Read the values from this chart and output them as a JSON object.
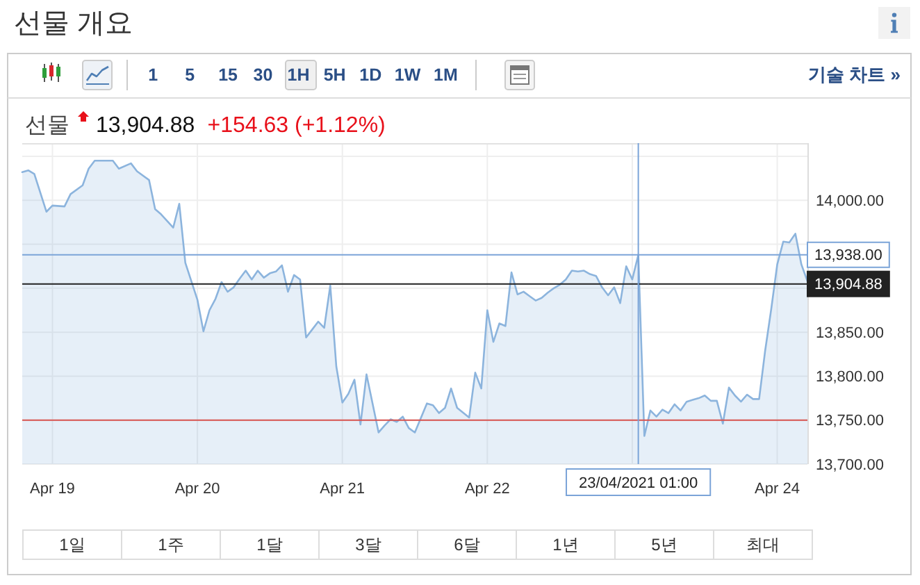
{
  "chart_data": {
    "type": "area",
    "title": "선물 개요",
    "subtitle": "선물",
    "annotations": [
      "13,904.88",
      "+154.63 (+1.12%)",
      "1 5 15 30 1H 5H 1D 1W 1M",
      "기술 차트 »",
      "1일",
      "1주",
      "1달",
      "3달",
      "6달",
      "1년",
      "5년",
      "최대"
    ],
    "color": "#8cb4dd",
    "x": [
      "2021-04-18T19:00",
      "2021-04-18T20:00",
      "2021-04-18T21:00",
      "2021-04-18T23:00",
      "2021-04-19T00:00",
      "2021-04-19T02:00",
      "2021-04-19T03:00",
      "2021-04-19T05:00",
      "2021-04-19T06:00",
      "2021-04-19T07:00",
      "2021-04-19T09:00",
      "2021-04-19T10:00",
      "2021-04-19T11:00",
      "2021-04-19T13:00",
      "2021-04-19T14:00",
      "2021-04-19T16:00",
      "2021-04-19T17:00",
      "2021-04-19T18:00",
      "2021-04-19T20:00",
      "2021-04-19T21:00",
      "2021-04-19T22:00",
      "2021-04-20T00:00",
      "2021-04-20T01:00",
      "2021-04-20T02:00",
      "2021-04-20T03:00",
      "2021-04-20T04:00",
      "2021-04-20T05:00",
      "2021-04-20T06:00",
      "2021-04-20T07:00",
      "2021-04-20T08:00",
      "2021-04-20T09:00",
      "2021-04-20T10:00",
      "2021-04-20T11:00",
      "2021-04-20T12:00",
      "2021-04-20T13:00",
      "2021-04-20T14:00",
      "2021-04-20T15:00",
      "2021-04-20T16:00",
      "2021-04-20T17:00",
      "2021-04-20T18:00",
      "2021-04-20T19:00",
      "2021-04-20T20:00",
      "2021-04-20T21:00",
      "2021-04-20T22:00",
      "2021-04-20T23:00",
      "2021-04-21T00:00",
      "2021-04-21T01:00",
      "2021-04-21T02:00",
      "2021-04-21T03:00",
      "2021-04-21T04:00",
      "2021-04-21T06:00",
      "2021-04-21T07:00",
      "2021-04-21T08:00",
      "2021-04-21T09:00",
      "2021-04-21T10:00",
      "2021-04-21T11:00",
      "2021-04-21T12:00",
      "2021-04-21T14:00",
      "2021-04-21T15:00",
      "2021-04-21T16:00",
      "2021-04-21T17:00",
      "2021-04-21T18:00",
      "2021-04-21T19:00",
      "2021-04-21T21:00",
      "2021-04-21T22:00",
      "2021-04-21T23:00",
      "2021-04-22T00:00",
      "2021-04-22T01:00",
      "2021-04-22T02:00",
      "2021-04-22T03:00",
      "2021-04-22T04:00",
      "2021-04-22T05:00",
      "2021-04-22T06:00",
      "2021-04-22T07:00",
      "2021-04-22T08:00",
      "2021-04-22T09:00",
      "2021-04-22T10:00",
      "2021-04-22T11:00",
      "2021-04-22T12:00",
      "2021-04-22T13:00",
      "2021-04-22T14:00",
      "2021-04-22T15:00",
      "2021-04-22T16:00",
      "2021-04-22T17:00",
      "2021-04-22T18:00",
      "2021-04-22T19:00",
      "2021-04-22T20:00",
      "2021-04-22T21:00",
      "2021-04-22T22:00",
      "2021-04-22T23:00",
      "2021-04-23T00:00",
      "2021-04-23T01:00",
      "2021-04-23T02:00",
      "2021-04-23T03:00",
      "2021-04-23T04:00",
      "2021-04-23T05:00",
      "2021-04-23T06:00",
      "2021-04-23T07:00",
      "2021-04-23T08:00",
      "2021-04-23T09:00",
      "2021-04-23T10:00",
      "2021-04-23T11:00",
      "2021-04-23T12:00",
      "2021-04-23T13:00",
      "2021-04-23T14:00",
      "2021-04-23T15:00",
      "2021-04-23T16:00",
      "2021-04-23T17:00",
      "2021-04-23T18:00",
      "2021-04-23T19:00",
      "2021-04-23T20:00",
      "2021-04-23T21:00",
      "2021-04-23T22:00",
      "2021-04-23T23:00",
      "2021-04-24T00:00",
      "2021-04-24T01:00",
      "2021-04-24T02:00",
      "2021-04-24T03:00",
      "2021-04-24T04:00",
      "2021-04-24T05:00"
    ],
    "values": [
      14032,
      14034,
      14030,
      13987,
      13994,
      13993,
      14007,
      14017,
      14036,
      14045,
      14045,
      14045,
      14036,
      14042,
      14033,
      14023,
      13990,
      13984,
      13969,
      13996,
      13929,
      13887,
      13851,
      13875,
      13888,
      13907,
      13896,
      13901,
      13911,
      13920,
      13910,
      13920,
      13912,
      13917,
      13919,
      13926,
      13896,
      13915,
      13910,
      13844,
      13853,
      13862,
      13855,
      13903,
      13811,
      13770,
      13780,
      13796,
      13745,
      13802,
      13736,
      13744,
      13751,
      13748,
      13754,
      13741,
      13736,
      13769,
      13767,
      13758,
      13764,
      13786,
      13764,
      13753,
      13804,
      13786,
      13875,
      13839,
      13860,
      13857,
      13918,
      13893,
      13896,
      13891,
      13886,
      13889,
      13895,
      13900,
      13904,
      13910,
      13920,
      13919,
      13920,
      13916,
      13914,
      13901,
      13892,
      13901,
      13883,
      13925,
      13910,
      13938,
      13732,
      13761,
      13754,
      13762,
      13758,
      13768,
      13761,
      13771,
      13773,
      13775,
      13778,
      13772,
      13772,
      13746,
      13787,
      13778,
      13771,
      13779,
      13774,
      13774,
      13829,
      13876,
      13927,
      13953,
      13952,
      13962,
      13927,
      13908
    ],
    "xlim": [
      "2021-04-18T19:00",
      "2021-04-24T05:00"
    ],
    "xticks": [
      {
        "value": "2021-04-19",
        "label": "Apr 19"
      },
      {
        "value": "2021-04-20",
        "label": "Apr 20"
      },
      {
        "value": "2021-04-21",
        "label": "Apr 21"
      },
      {
        "value": "2021-04-22",
        "label": "Apr 22"
      },
      {
        "value": "2021-04-23",
        "label": null
      },
      {
        "value": "2021-04-24",
        "label": "Apr 24"
      }
    ],
    "ylim": [
      13700,
      14065
    ],
    "yticks": [
      {
        "value": 13700,
        "label": "13,700.00"
      },
      {
        "value": 13750,
        "label": "13,750.00"
      },
      {
        "value": 13800,
        "label": "13,800.00"
      },
      {
        "value": 13850,
        "label": "13,850.00"
      },
      {
        "value": 13900,
        "label": null
      },
      {
        "value": 13950,
        "label": null
      },
      {
        "value": 14000,
        "label": "14,000.00"
      },
      {
        "value": 14050,
        "label": null
      }
    ],
    "grid": true,
    "ref_lines": [
      {
        "axis": "y",
        "value": 13750,
        "color": "#d9534f"
      },
      {
        "axis": "y",
        "value": 13904.88,
        "label": "13,904.88",
        "color": "#222222"
      },
      {
        "axis": "y",
        "value": 13938,
        "label": "13,938.00",
        "color": "#7ba4d8"
      },
      {
        "axis": "x",
        "value": "2021-04-23T01:00",
        "label": "23/04/2021 01:00",
        "color": "#7ba4d8"
      }
    ]
  }
}
